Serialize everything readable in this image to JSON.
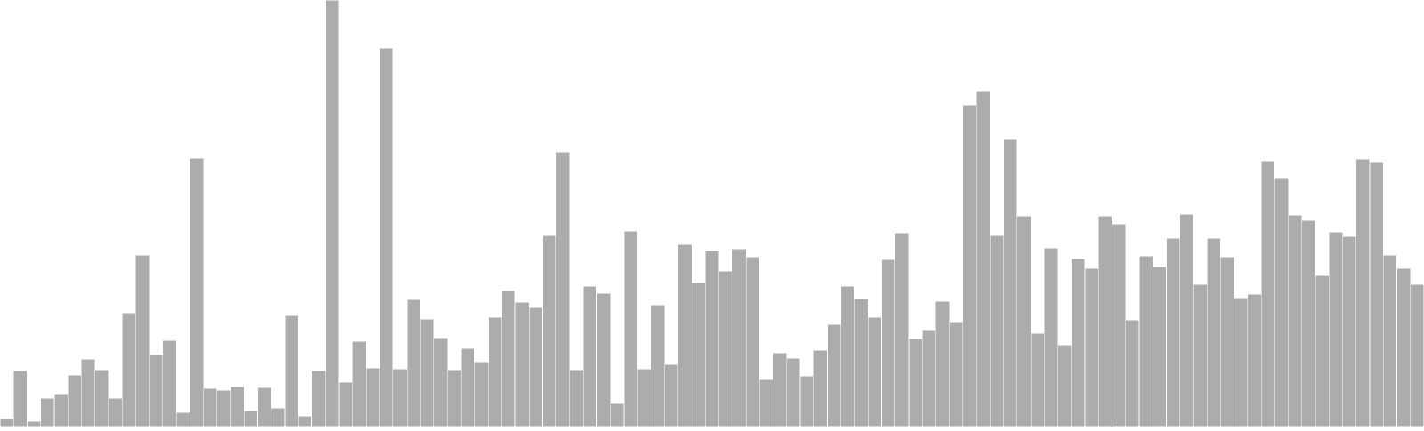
{
  "chart_data": {
    "type": "bar",
    "title": "",
    "xlabel": "",
    "ylabel": "",
    "ylim": [
      0,
      480
    ],
    "grid": false,
    "legend": "none",
    "axes_visible": false,
    "bar_color": "#acacac",
    "bar_edge_color": "#ffffff",
    "values": [
      9,
      63,
      6,
      32,
      37,
      58,
      76,
      64,
      32,
      128,
      193,
      81,
      97,
      16,
      302,
      43,
      41,
      45,
      18,
      44,
      21,
      125,
      12,
      63,
      480,
      50,
      96,
      66,
      426,
      65,
      143,
      121,
      100,
      64,
      88,
      73,
      123,
      153,
      140,
      134,
      215,
      309,
      64,
      158,
      150,
      26,
      220,
      65,
      137,
      70,
      205,
      162,
      198,
      175,
      200,
      191,
      53,
      83,
      77,
      57,
      86,
      115,
      158,
      144,
      123,
      188,
      218,
      99,
      109,
      141,
      118,
      362,
      378,
      215,
      324,
      237,
      105,
      201,
      92,
      189,
      178,
      237,
      228,
      120,
      192,
      180,
      212,
      239,
      160,
      212,
      191,
      145,
      149,
      299,
      280,
      238,
      232,
      170,
      219,
      214,
      301,
      298,
      193,
      178,
      160
    ]
  }
}
